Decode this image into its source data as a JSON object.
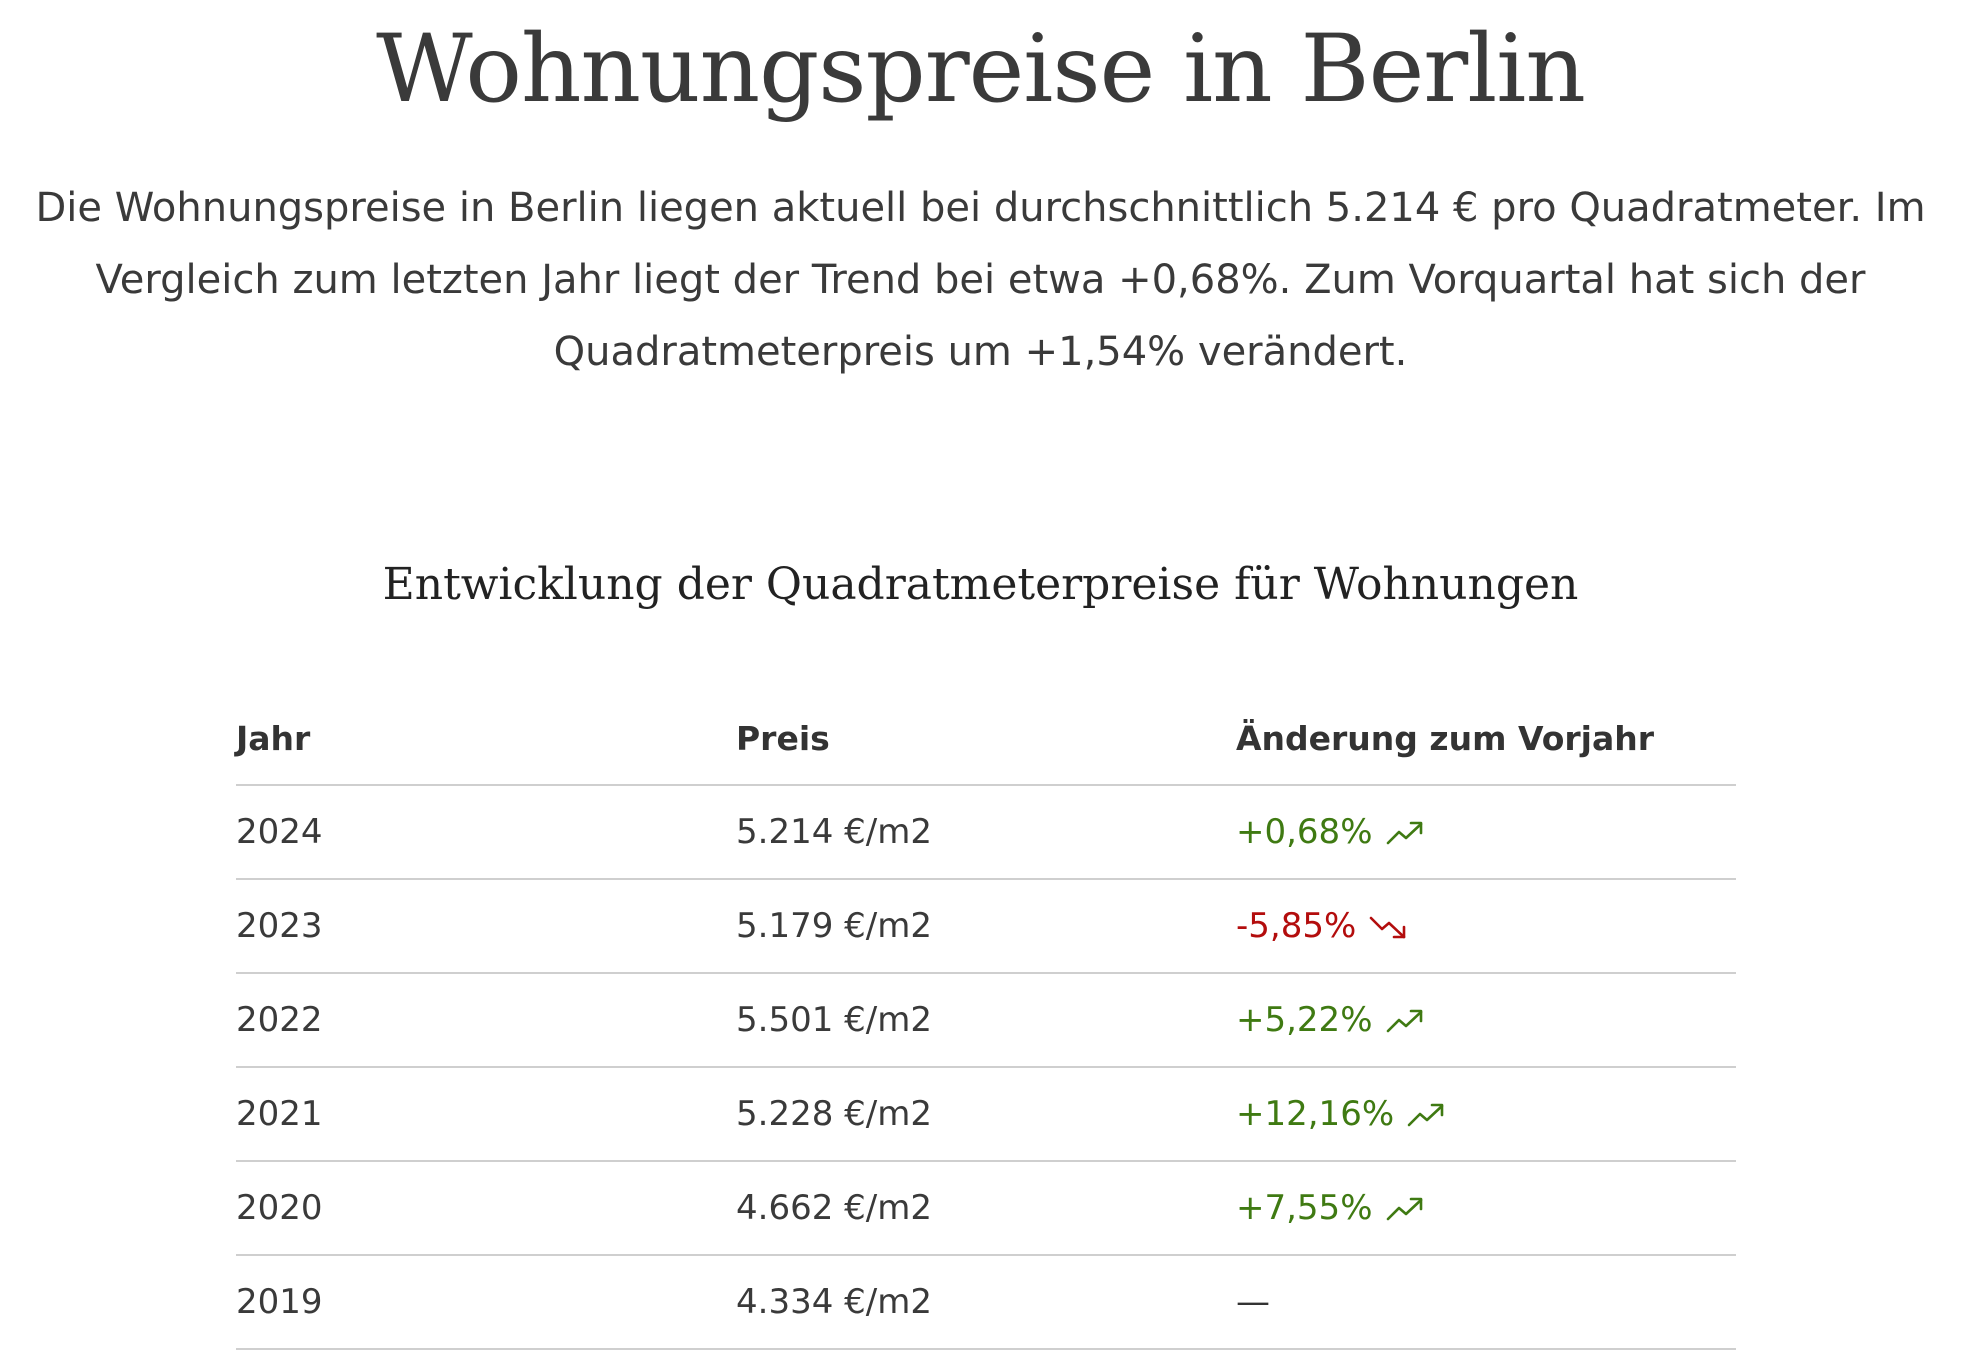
{
  "header": {
    "title": "Wohnungspreise in Berlin",
    "intro": "Die Wohnungspreise in Berlin liegen aktuell bei durchschnittlich 5.214 € pro Quadratmeter. Im Vergleich zum letzten Jahr liegt der Trend bei etwa +0,68%. Zum Vorquartal hat sich der Quadratmeterpreis um +1,54% verändert."
  },
  "section": {
    "title": "Entwicklung der Quadratmeterpreise für Wohnungen"
  },
  "table": {
    "headers": {
      "year": "Jahr",
      "price": "Preis",
      "change": "Änderung zum Vorjahr"
    },
    "rows": [
      {
        "year": "2024",
        "price": "5.214 €/m2",
        "change": "+0,68%",
        "trend": "up",
        "icon": "trend-up-icon"
      },
      {
        "year": "2023",
        "price": "5.179 €/m2",
        "change": "-5,85%",
        "trend": "down",
        "icon": "trend-down-icon"
      },
      {
        "year": "2022",
        "price": "5.501 €/m2",
        "change": "+5,22%",
        "trend": "up",
        "icon": "trend-up-icon"
      },
      {
        "year": "2021",
        "price": "5.228 €/m2",
        "change": "+12,16%",
        "trend": "up",
        "icon": "trend-up-icon"
      },
      {
        "year": "2020",
        "price": "4.662 €/m2",
        "change": "+7,55%",
        "trend": "up",
        "icon": "trend-up-icon"
      },
      {
        "year": "2019",
        "price": "4.334 €/m2",
        "change": "—",
        "trend": "none",
        "icon": ""
      }
    ]
  },
  "colors": {
    "positive": "#3f7a12",
    "negative": "#b30d0d",
    "text": "#3a3a3a",
    "divider": "#cfcfcf"
  }
}
